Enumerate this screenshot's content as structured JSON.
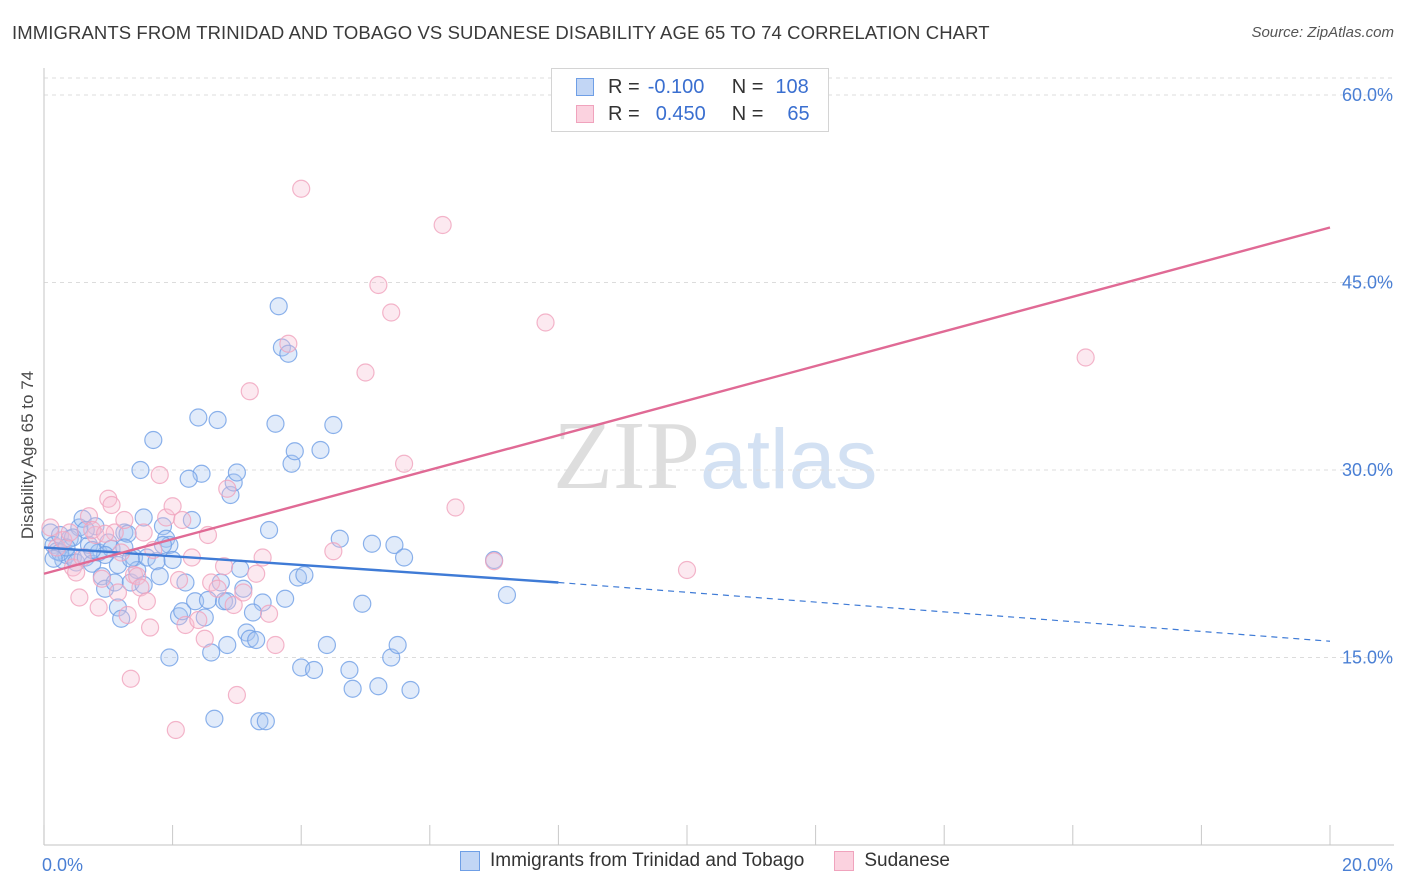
{
  "title": "IMMIGRANTS FROM TRINIDAD AND TOBAGO VS SUDANESE DISABILITY AGE 65 TO 74 CORRELATION CHART",
  "source": "Source: ZipAtlas.com",
  "watermark": {
    "zip": "ZIP",
    "atlas": "atlas"
  },
  "legend": {
    "rows": [
      {
        "r_label": "R =",
        "r_value": "-0.100",
        "n_label": "N =",
        "n_value": "108"
      },
      {
        "r_label": "R =",
        "r_value": "0.450",
        "n_label": "N =",
        "n_value": "65"
      }
    ]
  },
  "chart_data": {
    "type": "scatter",
    "ylabel": "Disability Age 65 to 74",
    "xlim": [
      0,
      20
    ],
    "ylim": [
      0,
      62
    ],
    "x_tick_labels": [
      "0.0%",
      "20.0%"
    ],
    "y_ticks": [
      15,
      30,
      45,
      60
    ],
    "y_tick_labels": [
      "15.0%",
      "30.0%",
      "45.0%",
      "60.0%"
    ],
    "grid": true,
    "legend_position": "bottom",
    "colors": {
      "blue": "#6f9fe6",
      "blue_line": "#3f7bd6",
      "pink": "#f0a3bd",
      "pink_line": "#e06a95"
    },
    "series": [
      {
        "name": "Immigrants from Trinidad and Tobago",
        "color": "#6f9fe6",
        "r": -0.1,
        "n": 108,
        "trend": {
          "x0": 0,
          "y0": 23.8,
          "x1": 8.0,
          "y1": 21.0,
          "dash_to_x": 20.0,
          "dash_to_y": 16.3
        },
        "points": [
          [
            0.1,
            25.0
          ],
          [
            0.15,
            24.0
          ],
          [
            0.2,
            23.5
          ],
          [
            0.25,
            24.8
          ],
          [
            0.3,
            22.8
          ],
          [
            0.35,
            23.2
          ],
          [
            0.4,
            24.5
          ],
          [
            0.45,
            23.0
          ],
          [
            0.5,
            22.6
          ],
          [
            0.55,
            25.4
          ],
          [
            0.6,
            26.1
          ],
          [
            0.65,
            23.0
          ],
          [
            0.7,
            24.0
          ],
          [
            0.75,
            22.5
          ],
          [
            0.8,
            25.5
          ],
          [
            0.85,
            23.4
          ],
          [
            0.9,
            21.5
          ],
          [
            0.95,
            20.5
          ],
          [
            1.0,
            24.2
          ],
          [
            1.05,
            23.7
          ],
          [
            1.1,
            21.0
          ],
          [
            1.15,
            19.0
          ],
          [
            1.2,
            18.1
          ],
          [
            1.25,
            25.0
          ],
          [
            1.3,
            24.9
          ],
          [
            1.35,
            21.0
          ],
          [
            1.4,
            23.0
          ],
          [
            1.45,
            22.0
          ],
          [
            1.5,
            30.0
          ],
          [
            1.55,
            26.2
          ],
          [
            1.6,
            23.0
          ],
          [
            1.7,
            32.4
          ],
          [
            1.75,
            22.7
          ],
          [
            1.8,
            21.5
          ],
          [
            1.85,
            25.5
          ],
          [
            1.9,
            24.5
          ],
          [
            1.95,
            24.0
          ],
          [
            2.0,
            22.8
          ],
          [
            2.1,
            18.3
          ],
          [
            2.15,
            18.7
          ],
          [
            2.2,
            21.0
          ],
          [
            2.3,
            26.0
          ],
          [
            2.35,
            19.5
          ],
          [
            2.4,
            34.2
          ],
          [
            2.45,
            29.7
          ],
          [
            2.5,
            18.2
          ],
          [
            2.55,
            19.6
          ],
          [
            2.6,
            15.4
          ],
          [
            2.7,
            34.0
          ],
          [
            2.75,
            21.0
          ],
          [
            2.8,
            19.5
          ],
          [
            2.85,
            19.5
          ],
          [
            2.9,
            28.0
          ],
          [
            2.95,
            29.0
          ],
          [
            3.0,
            29.8
          ],
          [
            3.05,
            22.1
          ],
          [
            3.1,
            20.5
          ],
          [
            3.15,
            17.0
          ],
          [
            3.2,
            16.5
          ],
          [
            3.3,
            16.4
          ],
          [
            3.35,
            9.9
          ],
          [
            3.4,
            19.4
          ],
          [
            3.5,
            25.2
          ],
          [
            3.6,
            33.7
          ],
          [
            3.65,
            43.1
          ],
          [
            3.7,
            39.8
          ],
          [
            3.75,
            19.7
          ],
          [
            3.8,
            39.3
          ],
          [
            3.85,
            30.5
          ],
          [
            3.9,
            31.5
          ],
          [
            3.95,
            21.4
          ],
          [
            4.0,
            14.2
          ],
          [
            4.05,
            21.6
          ],
          [
            4.2,
            14.0
          ],
          [
            4.3,
            31.6
          ],
          [
            4.4,
            16.0
          ],
          [
            4.5,
            33.6
          ],
          [
            4.6,
            24.5
          ],
          [
            4.75,
            14.0
          ],
          [
            4.8,
            12.5
          ],
          [
            4.95,
            19.3
          ],
          [
            5.1,
            24.1
          ],
          [
            5.2,
            12.7
          ],
          [
            5.4,
            15.0
          ],
          [
            5.45,
            24.0
          ],
          [
            5.5,
            16.0
          ],
          [
            5.6,
            23.0
          ],
          [
            5.7,
            12.4
          ],
          [
            7.0,
            22.8
          ],
          [
            7.2,
            20.0
          ],
          [
            0.25,
            23.4
          ],
          [
            0.45,
            24.6
          ],
          [
            0.65,
            25.2
          ],
          [
            0.95,
            23.2
          ],
          [
            1.25,
            23.8
          ],
          [
            1.55,
            20.8
          ],
          [
            1.95,
            15.0
          ],
          [
            2.25,
            29.3
          ],
          [
            2.65,
            10.1
          ],
          [
            2.85,
            16.0
          ],
          [
            3.25,
            18.6
          ],
          [
            3.45,
            9.9
          ],
          [
            1.85,
            24.0
          ],
          [
            0.35,
            23.8
          ],
          [
            1.15,
            22.4
          ],
          [
            0.15,
            22.9
          ],
          [
            0.75,
            23.6
          ],
          [
            1.35,
            22.9
          ]
        ]
      },
      {
        "name": "Sudanese",
        "color": "#f0a3bd",
        "r": 0.45,
        "n": 65,
        "trend": {
          "x0": 0,
          "y0": 21.7,
          "x1": 20.0,
          "y1": 49.4
        },
        "points": [
          [
            0.1,
            25.4
          ],
          [
            0.2,
            23.8
          ],
          [
            0.3,
            24.4
          ],
          [
            0.4,
            25.0
          ],
          [
            0.45,
            22.2
          ],
          [
            0.5,
            21.8
          ],
          [
            0.6,
            23.0
          ],
          [
            0.7,
            26.3
          ],
          [
            0.8,
            24.8
          ],
          [
            0.85,
            19.0
          ],
          [
            0.9,
            21.3
          ],
          [
            1.0,
            27.7
          ],
          [
            1.05,
            27.2
          ],
          [
            1.1,
            25.0
          ],
          [
            1.2,
            23.4
          ],
          [
            1.25,
            26.0
          ],
          [
            1.3,
            18.4
          ],
          [
            1.35,
            13.3
          ],
          [
            1.4,
            21.6
          ],
          [
            1.45,
            21.5
          ],
          [
            1.5,
            20.6
          ],
          [
            1.55,
            25.0
          ],
          [
            1.6,
            19.5
          ],
          [
            1.7,
            23.6
          ],
          [
            1.8,
            29.6
          ],
          [
            1.9,
            26.2
          ],
          [
            2.0,
            27.1
          ],
          [
            2.05,
            9.2
          ],
          [
            2.1,
            21.2
          ],
          [
            2.2,
            17.6
          ],
          [
            2.3,
            23.0
          ],
          [
            2.4,
            18.0
          ],
          [
            2.5,
            16.5
          ],
          [
            2.55,
            24.8
          ],
          [
            2.6,
            21.0
          ],
          [
            2.7,
            20.5
          ],
          [
            2.8,
            22.3
          ],
          [
            2.85,
            28.5
          ],
          [
            2.95,
            19.2
          ],
          [
            3.0,
            12.0
          ],
          [
            3.1,
            20.2
          ],
          [
            3.2,
            36.3
          ],
          [
            3.3,
            21.7
          ],
          [
            3.4,
            23.0
          ],
          [
            3.5,
            18.5
          ],
          [
            3.6,
            16.0
          ],
          [
            3.8,
            40.1
          ],
          [
            4.0,
            52.5
          ],
          [
            4.5,
            23.5
          ],
          [
            5.0,
            37.8
          ],
          [
            5.2,
            44.8
          ],
          [
            5.4,
            42.6
          ],
          [
            5.6,
            30.5
          ],
          [
            6.2,
            49.6
          ],
          [
            6.4,
            27.0
          ],
          [
            7.0,
            22.7
          ],
          [
            7.8,
            41.8
          ],
          [
            10.0,
            22.0
          ],
          [
            16.2,
            39.0
          ],
          [
            0.55,
            19.8
          ],
          [
            0.75,
            25.2
          ],
          [
            1.15,
            20.2
          ],
          [
            1.65,
            17.4
          ],
          [
            2.15,
            26.0
          ],
          [
            0.95,
            24.9
          ]
        ]
      }
    ]
  },
  "bottom_legend": {
    "items": [
      {
        "label": "Immigrants from Trinidad and Tobago"
      },
      {
        "label": "Sudanese"
      }
    ]
  }
}
